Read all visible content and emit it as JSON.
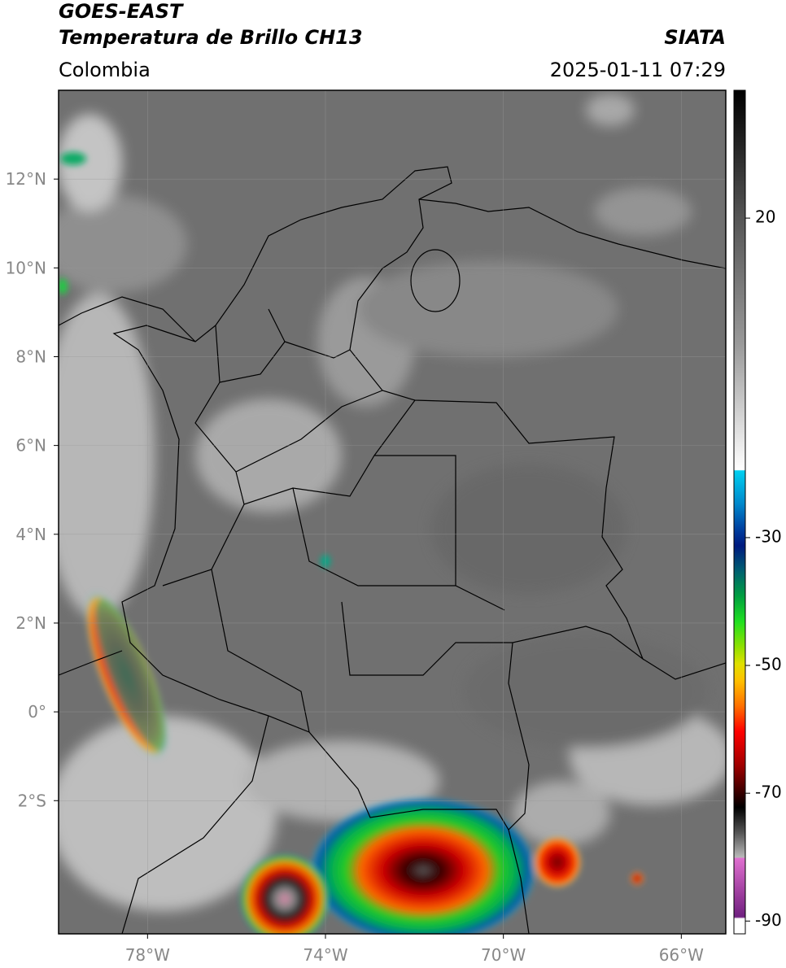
{
  "header": {
    "satellite": "GOES-EAST",
    "product": "Temperatura de Brillo CH13",
    "region": "Colombia",
    "source": "SIATA",
    "datetime": "2025-01-11 07:29"
  },
  "map": {
    "xlim": [
      -80,
      -65
    ],
    "ylim": [
      -5,
      14
    ],
    "xticks": [
      {
        "value": -78,
        "label": "78°W"
      },
      {
        "value": -74,
        "label": "74°W"
      },
      {
        "value": -70,
        "label": "70°W"
      },
      {
        "value": -66,
        "label": "66°W"
      }
    ],
    "yticks": [
      {
        "value": 12,
        "label": "12°N"
      },
      {
        "value": 10,
        "label": "10°N"
      },
      {
        "value": 8,
        "label": "8°N"
      },
      {
        "value": 6,
        "label": "6°N"
      },
      {
        "value": 4,
        "label": "4°N"
      },
      {
        "value": 2,
        "label": "2°N"
      },
      {
        "value": 0,
        "label": "0°"
      },
      {
        "value": -2,
        "label": "2°S"
      }
    ]
  },
  "colorbar": {
    "lim": [
      -92,
      40
    ],
    "ticks": [
      20,
      -30,
      -50,
      -70,
      -90
    ]
  }
}
